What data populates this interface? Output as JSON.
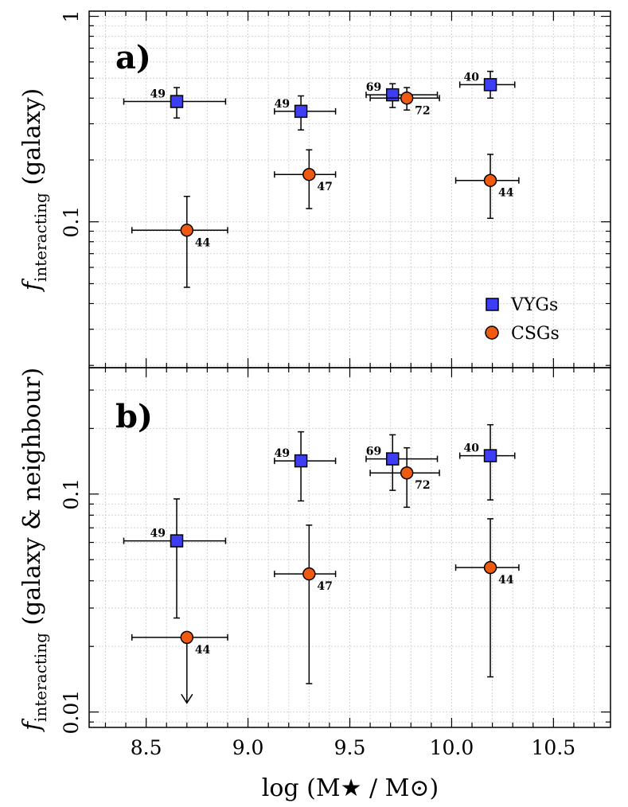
{
  "colors": {
    "vyg": "#3d3df5",
    "csg": "#f05a10",
    "grid": "#cfcfcf",
    "frame": "#000000"
  },
  "chart_data": [
    {
      "type": "scatter",
      "panel": "a)",
      "yscale": "log",
      "ylabel_main": "f",
      "ylabel_sub": "interacting",
      "ylabel_rest": " (galaxy)",
      "xlim": [
        8.22,
        10.78
      ],
      "ylim": [
        0.0195,
        1.06
      ],
      "yticks": [
        0.1,
        1
      ],
      "yticklabels": [
        "0.1",
        "1"
      ],
      "legend": {
        "position": "bottom-right",
        "entries": [
          "VYGs",
          "CSGs"
        ]
      },
      "series": [
        {
          "name": "VYGs",
          "marker": "square",
          "points": [
            {
              "x": 8.65,
              "y": 0.385,
              "xlo": 8.39,
              "xhi": 8.89,
              "ylo": 0.32,
              "yhi": 0.45,
              "n": "49"
            },
            {
              "x": 9.26,
              "y": 0.345,
              "xlo": 9.13,
              "xhi": 9.43,
              "ylo": 0.28,
              "yhi": 0.41,
              "n": "49"
            },
            {
              "x": 9.71,
              "y": 0.415,
              "xlo": 9.58,
              "xhi": 9.93,
              "ylo": 0.36,
              "yhi": 0.47,
              "n": "69"
            },
            {
              "x": 10.19,
              "y": 0.465,
              "xlo": 10.04,
              "xhi": 10.31,
              "ylo": 0.4,
              "yhi": 0.54,
              "n": "40"
            }
          ]
        },
        {
          "name": "CSGs",
          "marker": "circle",
          "points": [
            {
              "x": 8.7,
              "y": 0.091,
              "xlo": 8.43,
              "xhi": 8.9,
              "ylo": 0.048,
              "yhi": 0.133,
              "n": "44"
            },
            {
              "x": 9.3,
              "y": 0.17,
              "xlo": 9.13,
              "xhi": 9.43,
              "ylo": 0.116,
              "yhi": 0.224,
              "n": "47"
            },
            {
              "x": 9.78,
              "y": 0.4,
              "xlo": 9.6,
              "xhi": 9.94,
              "ylo": 0.35,
              "yhi": 0.45,
              "n": "72"
            },
            {
              "x": 10.19,
              "y": 0.159,
              "xlo": 10.02,
              "xhi": 10.33,
              "ylo": 0.104,
              "yhi": 0.213,
              "n": "44"
            }
          ]
        }
      ]
    },
    {
      "type": "scatter",
      "panel": "b)",
      "yscale": "log",
      "ylabel_main": "f",
      "ylabel_sub": "interacting",
      "ylabel_rest": " (galaxy & neighbour)",
      "xlabel": "log (M★ / M⊙)",
      "xlim": [
        8.22,
        10.78
      ],
      "ylim": [
        0.0085,
        0.38
      ],
      "xticks": [
        8.5,
        9.0,
        9.5,
        10.0,
        10.5
      ],
      "xticklabels": [
        "8.5",
        "9.0",
        "9.5",
        "10.0",
        "10.5"
      ],
      "yticks": [
        0.01,
        0.1
      ],
      "yticklabels": [
        "0.01",
        "0.1"
      ],
      "series": [
        {
          "name": "VYGs",
          "marker": "square",
          "points": [
            {
              "x": 8.65,
              "y": 0.061,
              "xlo": 8.39,
              "xhi": 8.89,
              "ylo": 0.027,
              "yhi": 0.095,
              "n": "49"
            },
            {
              "x": 9.26,
              "y": 0.142,
              "xlo": 9.13,
              "xhi": 9.43,
              "ylo": 0.093,
              "yhi": 0.193,
              "n": "49"
            },
            {
              "x": 9.71,
              "y": 0.145,
              "xlo": 9.58,
              "xhi": 9.93,
              "ylo": 0.104,
              "yhi": 0.187,
              "n": "69"
            },
            {
              "x": 10.19,
              "y": 0.15,
              "xlo": 10.04,
              "xhi": 10.31,
              "ylo": 0.094,
              "yhi": 0.208,
              "n": "40"
            }
          ]
        },
        {
          "name": "CSGs",
          "marker": "circle",
          "points": [
            {
              "x": 8.7,
              "y": 0.022,
              "xlo": 8.43,
              "xhi": 8.9,
              "yhi": 0.022,
              "ylo": 0.011,
              "upper_limit": true,
              "n": "44"
            },
            {
              "x": 9.3,
              "y": 0.043,
              "xlo": 9.13,
              "xhi": 9.43,
              "ylo": 0.0135,
              "yhi": 0.072,
              "n": "47"
            },
            {
              "x": 9.78,
              "y": 0.125,
              "xlo": 9.6,
              "xhi": 9.94,
              "ylo": 0.087,
              "yhi": 0.163,
              "n": "72"
            },
            {
              "x": 10.19,
              "y": 0.046,
              "xlo": 10.02,
              "xhi": 10.33,
              "ylo": 0.0145,
              "yhi": 0.077,
              "n": "44"
            }
          ]
        }
      ]
    }
  ]
}
